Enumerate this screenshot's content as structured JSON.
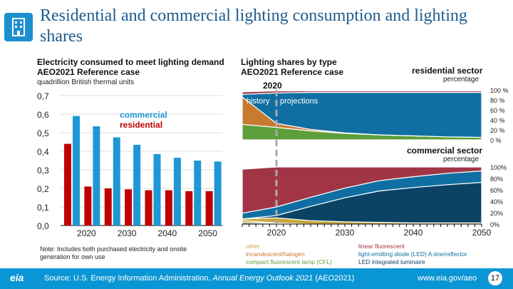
{
  "title": "Residential and commercial lighting consumption and lighting shares",
  "left": {
    "title1": "Electricity consumed to meet lighting demand",
    "title2": "AEO2021 Reference case",
    "units": "quadrillion British thermal units",
    "note": "Note: Includes both purchased electricity and onsite generation for own use"
  },
  "right": {
    "title1": "Lighting shares by type",
    "title2": "AEO2021 Reference case",
    "year_marker": "2020",
    "history": "history",
    "projections": "projections",
    "res_title": "residential sector",
    "com_title": "commercial sector",
    "pct": "percentage"
  },
  "legend": {
    "col1": [
      "other",
      "incandescent/halogen",
      "compact fluorescent lamp (CFL)"
    ],
    "col2": [
      "linear fluorescent",
      "light-emitting diode (LED) A-line/reflector",
      "LED integrated luminaire"
    ]
  },
  "footer": {
    "source_pre": "Source: U.S. Energy Information Administration, ",
    "source_italic": "Annual Energy Outlook 2021",
    "source_post": " (AEO2021)",
    "url": "www.eia.gov/aeo",
    "page": "17",
    "logo": "eia"
  },
  "colors": {
    "residential": "#c00000",
    "commercial": "#1f97d4",
    "other": "#c8a83a",
    "incandescent": "#c87a2e",
    "cfl": "#5e9e3a",
    "linear": "#a13545",
    "led_aline": "#0f6fa3",
    "led_integrated": "#0b4365"
  },
  "chart_data": [
    {
      "type": "bar",
      "title": "Electricity consumed to meet lighting demand",
      "ylabel": "quadrillion British thermal units",
      "ylim": [
        0,
        0.7
      ],
      "yticks": [
        "0,0",
        "0,1",
        "0,2",
        "0,3",
        "0,4",
        "0,5",
        "0,6",
        "0,7"
      ],
      "xtick_labels": [
        "2020",
        "2030",
        "2040",
        "2050"
      ],
      "categories": [
        2015,
        2020,
        2025,
        2030,
        2035,
        2040,
        2045,
        2050
      ],
      "series": [
        {
          "name": "residential",
          "values": [
            0.44,
            0.21,
            0.2,
            0.195,
            0.19,
            0.19,
            0.185,
            0.185
          ]
        },
        {
          "name": "commercial",
          "values": [
            0.59,
            0.535,
            0.475,
            0.435,
            0.385,
            0.365,
            0.35,
            0.345
          ]
        }
      ],
      "grid": true,
      "legend": "top-center"
    },
    {
      "type": "area",
      "title": "residential sector",
      "ylabel": "percentage",
      "ylim": [
        0,
        100
      ],
      "yticks": [
        "0 %",
        "20 %",
        "40 %",
        "60 %",
        "80 %",
        "100 %"
      ],
      "x": [
        2015,
        2020,
        2025,
        2030,
        2035,
        2040,
        2045,
        2050
      ],
      "series": [
        {
          "name": "compact fluorescent lamp (CFL)",
          "values": [
            31,
            25,
            18,
            13,
            10,
            8,
            6,
            5
          ]
        },
        {
          "name": "incandescent/halogen",
          "values": [
            55,
            8,
            3,
            1,
            0,
            0,
            0,
            0
          ]
        },
        {
          "name": "light-emitting diode (LED) A-line/reflector",
          "values": [
            5,
            61,
            74,
            81,
            85,
            87,
            89,
            90
          ]
        },
        {
          "name": "linear fluorescent",
          "values": [
            5,
            4,
            3,
            3,
            3,
            3,
            3,
            3
          ]
        }
      ]
    },
    {
      "type": "area",
      "title": "commercial sector",
      "ylabel": "percentage",
      "ylim": [
        0,
        100
      ],
      "yticks": [
        "0%",
        "20%",
        "40%",
        "60%",
        "80%",
        "100%"
      ],
      "xtick_labels": [
        "2020",
        "2030",
        "2040",
        "2050"
      ],
      "x": [
        2015,
        2020,
        2025,
        2030,
        2035,
        2040,
        2045,
        2050
      ],
      "series": [
        {
          "name": "compact fluorescent lamp (CFL)",
          "values": [
            3,
            1,
            0,
            0,
            0,
            0,
            0,
            0
          ]
        },
        {
          "name": "incandescent/halogen",
          "values": [
            3,
            1,
            0,
            0,
            0,
            0,
            0,
            0
          ]
        },
        {
          "name": "other",
          "values": [
            3,
            9,
            6,
            4,
            3,
            2,
            2,
            2
          ]
        },
        {
          "name": "LED integrated luminaire",
          "values": [
            0,
            4,
            25,
            42,
            55,
            62,
            67,
            71
          ]
        },
        {
          "name": "light-emitting diode (LED) A-line/reflector",
          "values": [
            10,
            15,
            16,
            17,
            18,
            19,
            20,
            20
          ]
        },
        {
          "name": "linear fluorescent",
          "values": [
            77,
            70,
            53,
            37,
            24,
            17,
            11,
            7
          ]
        }
      ]
    }
  ]
}
